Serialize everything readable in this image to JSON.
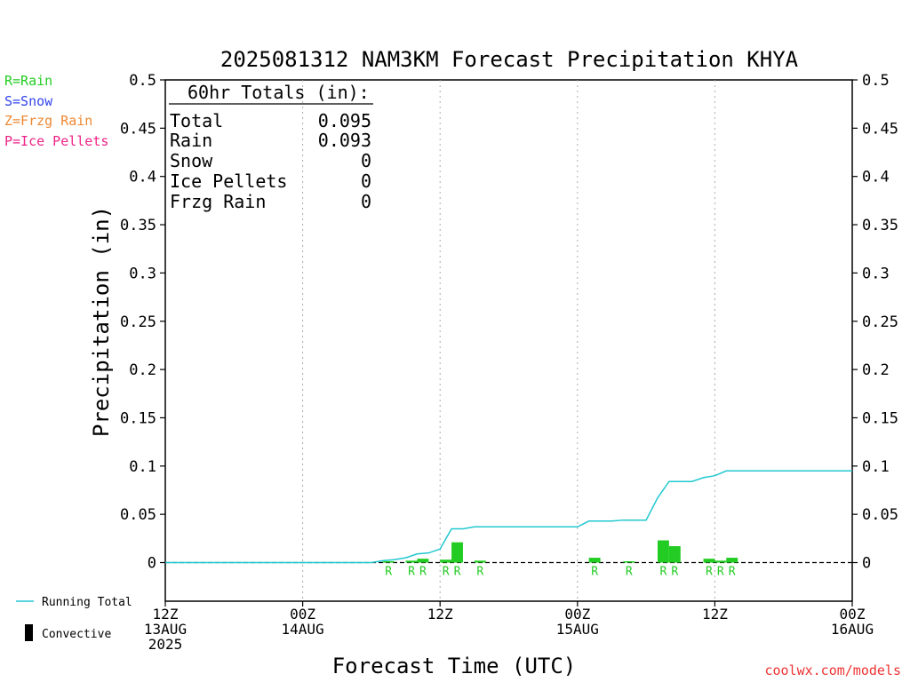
{
  "title": "2025081312 NAM3KM Forecast Precipitation KHYA",
  "ylabel": "Precipitation (in)",
  "xlabel": "Forecast Time (UTC)",
  "watermark": "coolwx.com/models",
  "legend_top": [
    {
      "text": "R=Rain",
      "color": "#22cc22"
    },
    {
      "text": "S=Snow",
      "color": "#3344ee"
    },
    {
      "text": "Z=Frzg Rain",
      "color": "#ee8833"
    },
    {
      "text": "P=Ice Pellets",
      "color": "#ee2288"
    }
  ],
  "legend_bottom": {
    "running_total": "Running Total",
    "convective": "Convective",
    "running_total_color": "#22c8d0",
    "convective_color": "#000000"
  },
  "totals_box": {
    "header": "60hr Totals (in):",
    "rows": [
      {
        "label": "Total",
        "value": "0.095"
      },
      {
        "label": "Rain",
        "value": "0.093"
      },
      {
        "label": "Snow",
        "value": "0"
      },
      {
        "label": "Ice Pellets",
        "value": "0"
      },
      {
        "label": "Frzg Rain",
        "value": "0"
      }
    ]
  },
  "chart_data": {
    "type": "bar",
    "title": "2025081312 NAM3KM Forecast Precipitation KHYA",
    "xlabel": "Forecast Time (UTC)",
    "ylabel": "Precipitation (in)",
    "xlim": [
      0,
      60
    ],
    "ylim": [
      -0.04,
      0.5
    ],
    "y_ticks": [
      "0",
      "0.05",
      "0.1",
      "0.15",
      "0.2",
      "0.25",
      "0.3",
      "0.35",
      "0.4",
      "0.45",
      "0.5"
    ],
    "y_tick_values": [
      0,
      0.05,
      0.1,
      0.15,
      0.2,
      0.25,
      0.3,
      0.35,
      0.4,
      0.45,
      0.5
    ],
    "x_ticks": [
      {
        "hour": 0,
        "lines": [
          "12Z",
          "13AUG",
          "2025"
        ]
      },
      {
        "hour": 12,
        "lines": [
          "00Z",
          "14AUG"
        ]
      },
      {
        "hour": 24,
        "lines": [
          "12Z"
        ]
      },
      {
        "hour": 36,
        "lines": [
          "00Z",
          "15AUG"
        ]
      },
      {
        "hour": 48,
        "lines": [
          "12Z"
        ]
      },
      {
        "hour": 60,
        "lines": [
          "00Z",
          "16AUG"
        ]
      }
    ],
    "grid": "vertical dotted at 00Z/12Z",
    "bar_color": "#22cc22",
    "line_color": "#22c8d0",
    "bars": [
      {
        "hour": 19,
        "value": 0.001,
        "type": "R"
      },
      {
        "hour": 21,
        "value": 0.002,
        "type": "R"
      },
      {
        "hour": 22,
        "value": 0.004,
        "type": "R"
      },
      {
        "hour": 24,
        "value": 0.003,
        "type": "R"
      },
      {
        "hour": 25,
        "value": 0.021,
        "type": "R"
      },
      {
        "hour": 27,
        "value": 0.002,
        "type": "R"
      },
      {
        "hour": 37,
        "value": 0.005,
        "type": "R"
      },
      {
        "hour": 40,
        "value": 0.001,
        "type": "R"
      },
      {
        "hour": 43,
        "value": 0.023,
        "type": "R"
      },
      {
        "hour": 44,
        "value": 0.017,
        "type": "R"
      },
      {
        "hour": 47,
        "value": 0.004,
        "type": "R"
      },
      {
        "hour": 48,
        "value": 0.002,
        "type": "R"
      },
      {
        "hour": 49,
        "value": 0.005,
        "type": "R"
      }
    ],
    "running_total": [
      {
        "hour": 0,
        "value": 0
      },
      {
        "hour": 18,
        "value": 0
      },
      {
        "hour": 19,
        "value": 0.002
      },
      {
        "hour": 20,
        "value": 0.003
      },
      {
        "hour": 21,
        "value": 0.005
      },
      {
        "hour": 22,
        "value": 0.009
      },
      {
        "hour": 23,
        "value": 0.01
      },
      {
        "hour": 24,
        "value": 0.014
      },
      {
        "hour": 25,
        "value": 0.035
      },
      {
        "hour": 26,
        "value": 0.035
      },
      {
        "hour": 27,
        "value": 0.037
      },
      {
        "hour": 36,
        "value": 0.037
      },
      {
        "hour": 37,
        "value": 0.043
      },
      {
        "hour": 39,
        "value": 0.043
      },
      {
        "hour": 40,
        "value": 0.044
      },
      {
        "hour": 42,
        "value": 0.044
      },
      {
        "hour": 43,
        "value": 0.067
      },
      {
        "hour": 44,
        "value": 0.084
      },
      {
        "hour": 46,
        "value": 0.084
      },
      {
        "hour": 47,
        "value": 0.088
      },
      {
        "hour": 48,
        "value": 0.09
      },
      {
        "hour": 49,
        "value": 0.095
      },
      {
        "hour": 60,
        "value": 0.095
      }
    ]
  }
}
